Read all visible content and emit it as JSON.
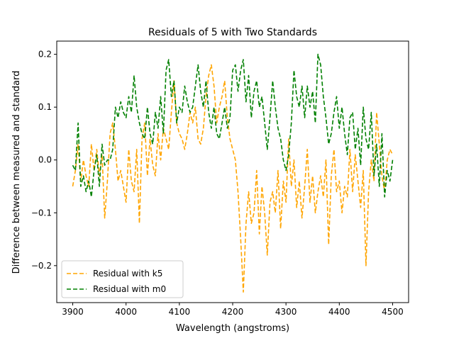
{
  "chart_data": {
    "type": "line",
    "title": "Residuals of 5 with Two Standards",
    "xlabel": "Wavelength (angstroms)",
    "ylabel": "Difference between measured and standard",
    "xlim": [
      3870,
      4530
    ],
    "ylim": [
      -0.27,
      0.225
    ],
    "xticks": [
      3900,
      4000,
      4100,
      4200,
      4300,
      4400,
      4500
    ],
    "yticks": [
      -0.2,
      -0.1,
      0.0,
      0.1,
      0.2
    ],
    "xtick_labels": [
      "3900",
      "4000",
      "4100",
      "4200",
      "4300",
      "4400",
      "4500"
    ],
    "ytick_labels": [
      "−0.2",
      "−0.1",
      "0.0",
      "0.1",
      "0.2"
    ],
    "grid": false,
    "legend_position": "lower-left",
    "series": [
      {
        "name": "Residual with k5",
        "color": "#ffa500",
        "style": "dashed",
        "x": [
          3900,
          3905,
          3910,
          3915,
          3920,
          3925,
          3930,
          3935,
          3940,
          3945,
          3950,
          3955,
          3960,
          3965,
          3970,
          3975,
          3980,
          3985,
          3990,
          3995,
          4000,
          4005,
          4010,
          4015,
          4020,
          4025,
          4030,
          4035,
          4040,
          4045,
          4050,
          4055,
          4060,
          4065,
          4070,
          4075,
          4080,
          4085,
          4090,
          4095,
          4100,
          4105,
          4110,
          4115,
          4120,
          4125,
          4130,
          4135,
          4140,
          4145,
          4150,
          4155,
          4160,
          4165,
          4170,
          4175,
          4180,
          4185,
          4190,
          4195,
          4200,
          4205,
          4210,
          4215,
          4220,
          4225,
          4230,
          4235,
          4240,
          4245,
          4250,
          4255,
          4260,
          4265,
          4270,
          4275,
          4280,
          4285,
          4290,
          4295,
          4300,
          4305,
          4310,
          4315,
          4320,
          4325,
          4330,
          4335,
          4340,
          4345,
          4350,
          4355,
          4360,
          4365,
          4370,
          4375,
          4380,
          4385,
          4390,
          4395,
          4400,
          4405,
          4410,
          4415,
          4420,
          4425,
          4430,
          4435,
          4440,
          4445,
          4450,
          4455,
          4460,
          4465,
          4470,
          4475,
          4480,
          4485,
          4490,
          4495,
          4500
        ],
        "y": [
          -0.05,
          -0.02,
          0.03,
          -0.04,
          0.0,
          -0.03,
          -0.05,
          0.03,
          -0.02,
          0.02,
          -0.03,
          0.01,
          -0.11,
          -0.04,
          0.05,
          0.07,
          0.02,
          -0.04,
          -0.02,
          -0.05,
          -0.08,
          0.02,
          -0.04,
          -0.06,
          0.02,
          -0.12,
          0.04,
          0.07,
          -0.03,
          0.04,
          -0.01,
          -0.03,
          0.05,
          0.0,
          0.06,
          0.04,
          0.02,
          0.09,
          0.15,
          0.07,
          0.05,
          0.04,
          0.02,
          0.05,
          0.09,
          0.07,
          0.1,
          0.04,
          0.03,
          0.06,
          0.12,
          0.16,
          0.18,
          0.14,
          0.07,
          0.1,
          0.12,
          0.15,
          0.08,
          0.04,
          0.02,
          0.0,
          -0.06,
          -0.15,
          -0.25,
          -0.12,
          -0.06,
          -0.12,
          -0.1,
          -0.02,
          -0.14,
          -0.05,
          -0.1,
          -0.18,
          -0.08,
          -0.06,
          -0.1,
          -0.02,
          -0.13,
          -0.04,
          -0.08,
          0.04,
          -0.05,
          0.0,
          -0.09,
          -0.04,
          -0.11,
          -0.05,
          0.02,
          -0.08,
          -0.03,
          -0.1,
          -0.06,
          -0.03,
          -0.07,
          0.0,
          -0.16,
          -0.03,
          0.02,
          -0.06,
          -0.04,
          -0.1,
          -0.05,
          -0.07,
          0.02,
          -0.06,
          0.01,
          -0.04,
          -0.09,
          -0.02,
          -0.2,
          -0.06,
          0.0,
          -0.04,
          0.09,
          0.03,
          -0.03,
          -0.06,
          0.0,
          0.02,
          0.01
        ]
      },
      {
        "name": "Residual with m0",
        "color": "#008000",
        "style": "dashed",
        "x": [
          3900,
          3905,
          3910,
          3915,
          3920,
          3925,
          3930,
          3935,
          3940,
          3945,
          3950,
          3955,
          3960,
          3965,
          3970,
          3975,
          3980,
          3985,
          3990,
          3995,
          4000,
          4005,
          4010,
          4015,
          4020,
          4025,
          4030,
          4035,
          4040,
          4045,
          4050,
          4055,
          4060,
          4065,
          4070,
          4075,
          4080,
          4085,
          4090,
          4095,
          4100,
          4105,
          4110,
          4115,
          4120,
          4125,
          4130,
          4135,
          4140,
          4145,
          4150,
          4155,
          4160,
          4165,
          4170,
          4175,
          4180,
          4185,
          4190,
          4195,
          4200,
          4205,
          4210,
          4215,
          4220,
          4225,
          4230,
          4235,
          4240,
          4245,
          4250,
          4255,
          4260,
          4265,
          4270,
          4275,
          4280,
          4285,
          4290,
          4295,
          4300,
          4305,
          4310,
          4315,
          4320,
          4325,
          4330,
          4335,
          4340,
          4345,
          4350,
          4355,
          4360,
          4365,
          4370,
          4375,
          4380,
          4385,
          4390,
          4395,
          4400,
          4405,
          4410,
          4415,
          4420,
          4425,
          4430,
          4435,
          4440,
          4445,
          4450,
          4455,
          4460,
          4465,
          4470,
          4475,
          4480,
          4485,
          4490,
          4495,
          4500
        ],
        "y": [
          -0.01,
          -0.02,
          0.07,
          -0.05,
          -0.03,
          -0.06,
          -0.04,
          -0.07,
          -0.02,
          0.01,
          -0.05,
          0.03,
          -0.01,
          0.0,
          0.0,
          0.02,
          0.1,
          0.08,
          0.11,
          0.09,
          0.08,
          0.12,
          0.09,
          0.16,
          0.1,
          0.07,
          0.05,
          0.04,
          0.1,
          0.05,
          0.03,
          0.09,
          0.06,
          0.12,
          0.05,
          0.17,
          0.19,
          0.12,
          0.15,
          0.07,
          0.1,
          0.09,
          0.14,
          0.11,
          0.09,
          0.1,
          0.14,
          0.18,
          0.13,
          0.1,
          0.15,
          0.09,
          0.06,
          0.1,
          0.05,
          0.04,
          0.07,
          0.1,
          0.06,
          0.08,
          0.17,
          0.18,
          0.13,
          0.17,
          0.19,
          0.11,
          0.16,
          0.08,
          0.13,
          0.15,
          0.1,
          0.12,
          0.07,
          0.02,
          0.08,
          0.15,
          0.1,
          0.06,
          0.04,
          0.0,
          -0.02,
          0.01,
          0.07,
          0.17,
          0.12,
          0.1,
          0.14,
          0.08,
          0.14,
          0.1,
          0.13,
          0.07,
          0.2,
          0.18,
          0.12,
          0.08,
          0.03,
          0.05,
          0.09,
          0.12,
          0.06,
          0.1,
          0.05,
          0.01,
          0.08,
          0.09,
          0.02,
          0.06,
          -0.01,
          0.1,
          0.04,
          0.02,
          0.09,
          -0.03,
          0.03,
          -0.05,
          0.05,
          -0.07,
          -0.02,
          -0.04,
          0.0
        ]
      }
    ]
  }
}
